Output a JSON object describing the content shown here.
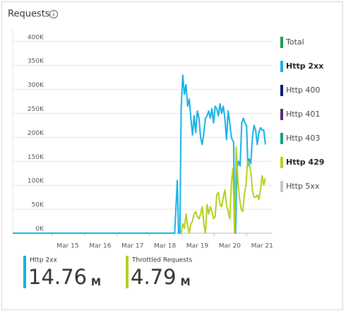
{
  "chart_data": {
    "type": "line",
    "title": "Requests",
    "xlim": [
      13.3,
      21.3
    ],
    "xticks": [
      {
        "value": 15,
        "label": "Mar 15"
      },
      {
        "value": 16,
        "label": "Mar 16"
      },
      {
        "value": 17,
        "label": "Mar 17"
      },
      {
        "value": 18,
        "label": "Mar 18"
      },
      {
        "value": 19,
        "label": "Mar 19"
      },
      {
        "value": 20,
        "label": "Mar 20"
      },
      {
        "value": 21,
        "label": "Mar 21"
      }
    ],
    "ylim": [
      0,
      410000
    ],
    "yticks": [
      {
        "value": 0,
        "label": "0K"
      },
      {
        "value": 50000,
        "label": "50K"
      },
      {
        "value": 100000,
        "label": "100K"
      },
      {
        "value": 150000,
        "label": "150K"
      },
      {
        "value": 200000,
        "label": "200K"
      },
      {
        "value": 250000,
        "label": "250K"
      },
      {
        "value": 300000,
        "label": "300K"
      },
      {
        "value": 350000,
        "label": "350K"
      },
      {
        "value": 400000,
        "label": "400K"
      }
    ],
    "grid": true,
    "series": [
      {
        "name": "Http 2xx",
        "color": "#16b1e6",
        "x": [
          13.3,
          18.3,
          18.38,
          18.42,
          18.46,
          18.5,
          18.55,
          18.6,
          18.65,
          18.7,
          18.75,
          18.8,
          18.85,
          18.9,
          18.95,
          19.0,
          19.05,
          19.1,
          19.15,
          19.2,
          19.25,
          19.3,
          19.35,
          19.4,
          19.45,
          19.5,
          19.55,
          19.6,
          19.65,
          19.7,
          19.75,
          19.8,
          19.85,
          19.9,
          19.95,
          20.0,
          20.05,
          20.08,
          20.12,
          20.15,
          20.18,
          20.22,
          20.27,
          20.32,
          20.37,
          20.42,
          20.47,
          20.52,
          20.56,
          20.6,
          20.65,
          20.7,
          20.75,
          20.8,
          20.85,
          20.9,
          20.95,
          21.0,
          21.05,
          21.1
        ],
        "values": [
          0,
          0,
          110000,
          0,
          0,
          260000,
          330000,
          290000,
          310000,
          265000,
          280000,
          240000,
          205000,
          245000,
          210000,
          255000,
          240000,
          200000,
          185000,
          210000,
          240000,
          245000,
          255000,
          240000,
          260000,
          230000,
          265000,
          260000,
          245000,
          270000,
          250000,
          265000,
          240000,
          195000,
          255000,
          230000,
          200000,
          195000,
          190000,
          30000,
          0,
          135000,
          150000,
          140000,
          230000,
          240000,
          230000,
          225000,
          140000,
          155000,
          145000,
          200000,
          225000,
          215000,
          185000,
          210000,
          220000,
          215000,
          215000,
          185000
        ]
      },
      {
        "name": "Http 429",
        "color": "#b6cf1a",
        "x": [
          18.5,
          18.55,
          18.6,
          18.65,
          18.7,
          18.75,
          18.8,
          18.85,
          18.9,
          18.95,
          19.0,
          19.05,
          19.1,
          19.15,
          19.2,
          19.25,
          19.3,
          19.35,
          19.4,
          19.45,
          19.5,
          19.55,
          19.6,
          19.65,
          19.7,
          19.75,
          19.8,
          19.85,
          19.9,
          19.95,
          20.0,
          20.05,
          20.1,
          20.15,
          20.2,
          20.25,
          20.3,
          20.35,
          20.4,
          20.45,
          20.5,
          20.55,
          20.6,
          20.65,
          20.7,
          20.75,
          20.8,
          20.85,
          20.9,
          20.95,
          21.0,
          21.05,
          21.1
        ],
        "values": [
          0,
          20000,
          10000,
          40000,
          15000,
          0,
          20000,
          25000,
          40000,
          45000,
          35000,
          30000,
          40000,
          55000,
          20000,
          0,
          60000,
          40000,
          55000,
          45000,
          30000,
          35000,
          80000,
          85000,
          60000,
          55000,
          75000,
          90000,
          60000,
          45000,
          30000,
          105000,
          135000,
          0,
          180000,
          110000,
          75000,
          50000,
          45000,
          80000,
          100000,
          150000,
          145000,
          130000,
          90000,
          75000,
          75000,
          80000,
          70000,
          90000,
          120000,
          100000,
          115000
        ]
      }
    ],
    "legend": [
      {
        "name": "Total",
        "color": "#1a9e54"
      },
      {
        "name": "Http 2xx",
        "color": "#16b1e6"
      },
      {
        "name": "Http 400",
        "color": "#0b1a7a"
      },
      {
        "name": "Http 401",
        "color": "#5c2d76"
      },
      {
        "name": "Http 403",
        "color": "#14a08a"
      },
      {
        "name": "Http 429",
        "color": "#b6cf1a"
      },
      {
        "name": "Http 5xx",
        "color": "#c3c7cc"
      }
    ],
    "summary": [
      {
        "label": "Http 2xx",
        "value": 14.76,
        "unit": "M",
        "color": "#16b1e6"
      },
      {
        "label": "Throttled Requests",
        "value": 4.79,
        "unit": "M",
        "color": "#b6cf1a"
      }
    ]
  }
}
